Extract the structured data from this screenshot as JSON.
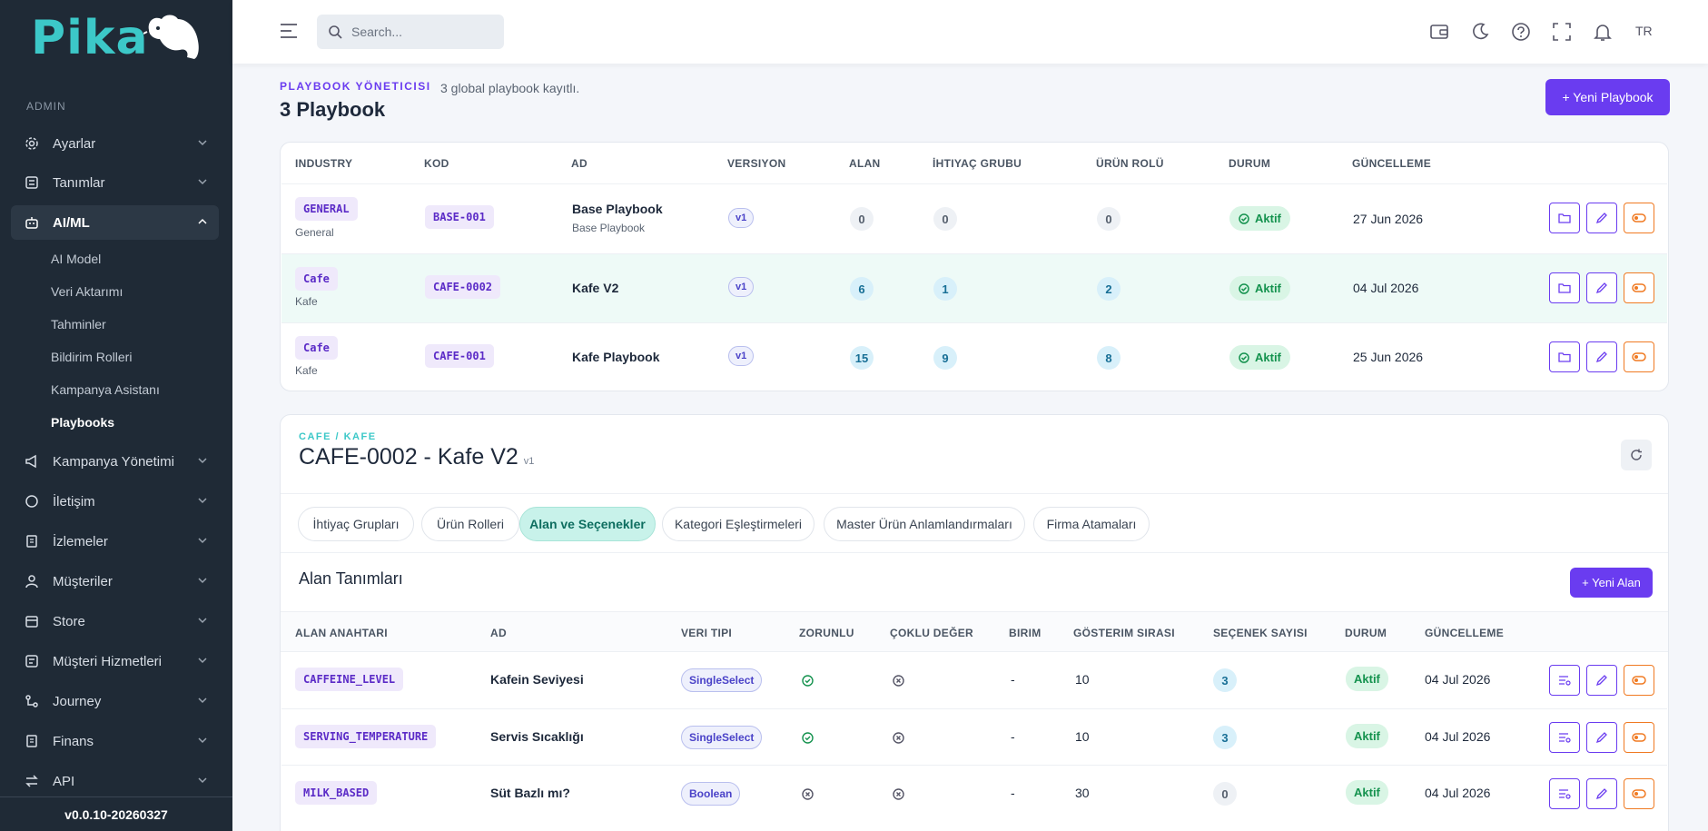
{
  "app": {
    "logo_text": "Pika",
    "version": "v0.0.10-20260327"
  },
  "sidebar": {
    "section_label": "ADMIN",
    "items": [
      {
        "label": "Ayarlar",
        "icon": "gear-icon"
      },
      {
        "label": "Tanımlar",
        "icon": "list-icon"
      },
      {
        "label": "AI/ML",
        "icon": "robot-icon",
        "expanded": true
      },
      {
        "label": "Kampanya Yönetimi",
        "icon": "megaphone-icon"
      },
      {
        "label": "İletişim",
        "icon": "chat-icon"
      },
      {
        "label": "İzlemeler",
        "icon": "document-icon"
      },
      {
        "label": "Müşteriler",
        "icon": "user-icon"
      },
      {
        "label": "Store",
        "icon": "store-icon"
      },
      {
        "label": "Müşteri Hizmetleri",
        "icon": "support-icon"
      },
      {
        "label": "Journey",
        "icon": "route-icon"
      },
      {
        "label": "Finans",
        "icon": "ledger-icon"
      },
      {
        "label": "API",
        "icon": "transfer-icon"
      }
    ],
    "ai_sub": [
      "AI Model",
      "Veri Aktarımı",
      "Tahminler",
      "Bildirim Rolleri",
      "Kampanya Asistanı",
      "Playbooks"
    ],
    "current_sub": "Playbooks"
  },
  "topbar": {
    "search_placeholder": "Search...",
    "lang": "TR"
  },
  "header": {
    "crumb": "PLAYBOOK YÖNETICISI",
    "subtitle": "3 global playbook kayıtlı.",
    "title": "3 Playbook",
    "new_button": "+ Yeni Playbook"
  },
  "playbooks": {
    "columns": [
      "INDUSTRY",
      "KOD",
      "AD",
      "VERSIYON",
      "ALAN",
      "İHTIYAÇ GRUBU",
      "ÜRÜN ROLÜ",
      "DURUM",
      "GÜNCELLEME"
    ],
    "rows": [
      {
        "industry_code": "GENERAL",
        "industry_name": "General",
        "code": "BASE-001",
        "name": "Base Playbook",
        "name_sub": "Base Playbook",
        "version": "v1",
        "alan": "0",
        "ihtiyac": "0",
        "urun": "0",
        "status": "Aktif",
        "updated": "27 Jun 2026"
      },
      {
        "industry_code": "Cafe",
        "industry_name": "Kafe",
        "code": "CAFE-0002",
        "name": "Kafe V2",
        "name_sub": "",
        "version": "v1",
        "alan": "6",
        "ihtiyac": "1",
        "urun": "2",
        "status": "Aktif",
        "updated": "04 Jul 2026"
      },
      {
        "industry_code": "Cafe",
        "industry_name": "Kafe",
        "code": "CAFE-001",
        "name": "Kafe Playbook",
        "name_sub": "",
        "version": "v1",
        "alan": "15",
        "ihtiyac": "9",
        "urun": "8",
        "status": "Aktif",
        "updated": "25 Jun 2026"
      }
    ]
  },
  "detail": {
    "crumb": "CAFE / KAFE",
    "title": "CAFE-0002 - Kafe V2",
    "version": "v1",
    "tabs": [
      "İhtiyaç Grupları",
      "Ürün Rolleri",
      "Alan ve Seçenekler",
      "Kategori Eşleştirmeleri",
      "Master Ürün Anlamlandırmaları",
      "Firma Atamaları"
    ],
    "active_tab": "Alan ve Seçenekler",
    "section_title": "Alan Tanımları",
    "new_button": "+ Yeni Alan",
    "columns": [
      "ALAN ANAHTARI",
      "AD",
      "VERI TIPI",
      "ZORUNLU",
      "ÇOKLU DEĞER",
      "BIRIM",
      "GÖSTERIM SIRASI",
      "SEÇENEK SAYISI",
      "DURUM",
      "GÜNCELLEME"
    ],
    "rows": [
      {
        "key": "CAFFEINE_LEVEL",
        "name": "Kafein Seviyesi",
        "type": "SingleSelect",
        "required": true,
        "multi": false,
        "unit": "-",
        "order": "10",
        "options": "3",
        "status": "Aktif",
        "updated": "04 Jul 2026"
      },
      {
        "key": "SERVING_TEMPERATURE",
        "name": "Servis Sıcaklığı",
        "type": "SingleSelect",
        "required": true,
        "multi": false,
        "unit": "-",
        "order": "10",
        "options": "3",
        "status": "Aktif",
        "updated": "04 Jul 2026"
      },
      {
        "key": "MILK_BASED",
        "name": "Süt Bazlı mı?",
        "type": "Boolean",
        "required": false,
        "multi": false,
        "unit": "-",
        "order": "30",
        "options": "0",
        "status": "Aktif",
        "updated": "04 Jul 2026"
      }
    ]
  },
  "colors": {
    "accent": "#6a3cf0",
    "sidebar": "#1f2a36",
    "teal": "#3cc8c8",
    "success": "#14924e",
    "danger": "#f07a22"
  }
}
